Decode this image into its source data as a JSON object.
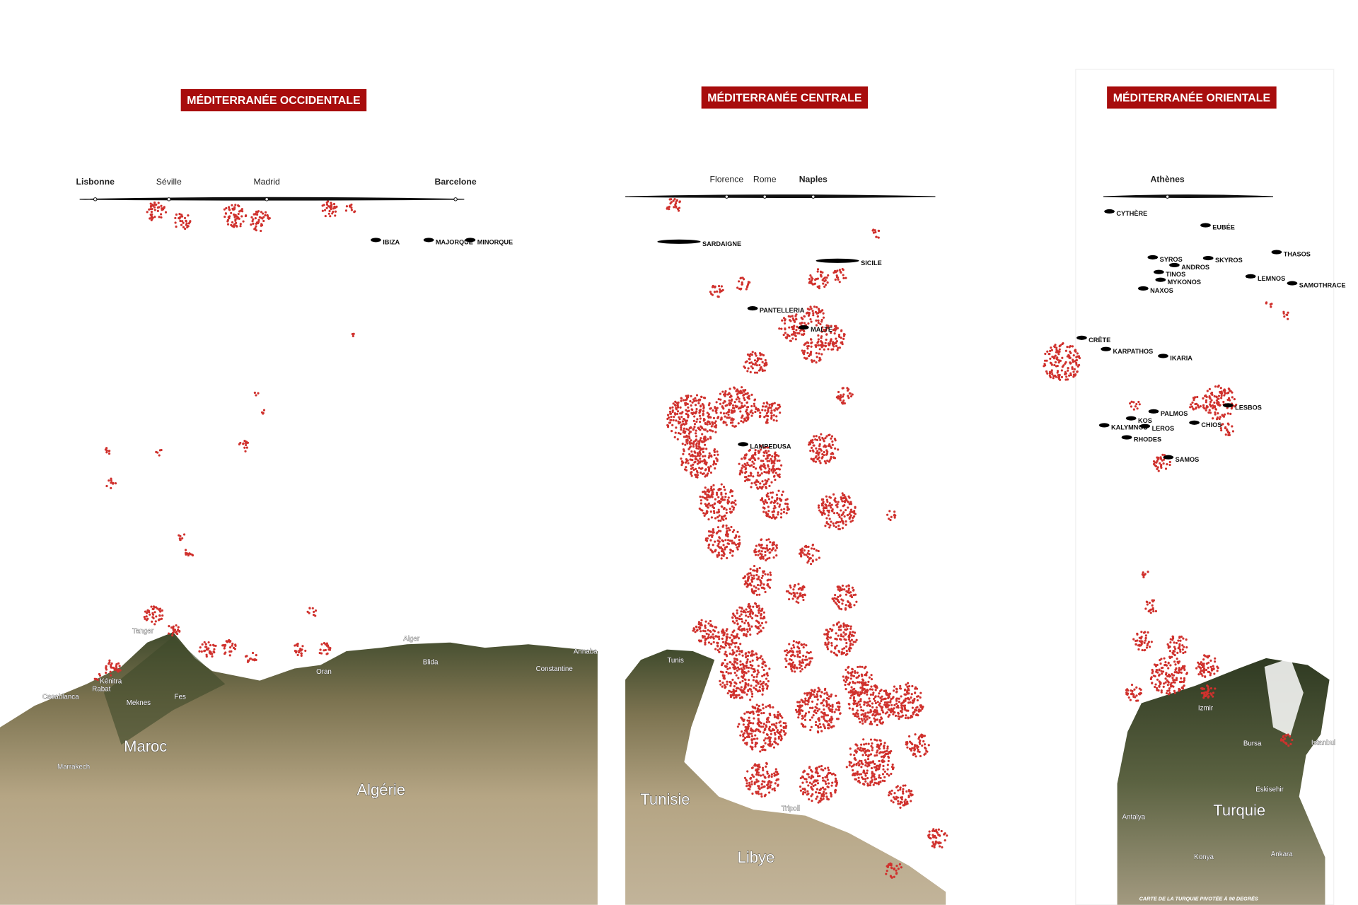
{
  "panels": [
    {
      "title": "MÉDITERRANÉE OCCIDENTALE",
      "cities": [
        "Lisbonne",
        "Séville",
        "Madrid",
        "Barcelone"
      ],
      "islands": [
        "IBIZA",
        "MAJORQUE",
        "MINORQUE"
      ],
      "countries": [
        "Maroc",
        "Algérie"
      ],
      "places": [
        "Tanger",
        "Alger",
        "Kénitra",
        "Rabat",
        "Casablanca",
        "Fes",
        "Meknes",
        "Oran",
        "Blida",
        "Constantine",
        "Annaba",
        "Marrakech"
      ]
    },
    {
      "title": "MÉDITERRANÉE CENTRALE",
      "cities": [
        "Florence",
        "Rome",
        "Naples"
      ],
      "islands": [
        "SARDAIGNE",
        "SICILE",
        "PANTELLERIA",
        "MALTE",
        "LAMPEDUSA"
      ],
      "countries": [
        "Tunisie",
        "Libye"
      ],
      "places": [
        "Tunis",
        "Tripoli"
      ]
    },
    {
      "title": "MÉDITERRANÉE ORIENTALE",
      "cities": [
        "Athènes"
      ],
      "islands": [
        "CYTHÈRE",
        "EUBÉE",
        "THASOS",
        "SYROS",
        "SKYROS",
        "ANDROS",
        "TINOS",
        "MYKONOS",
        "LEMNOS",
        "SAMOTHRACE",
        "NAXOS",
        "CRÊTE",
        "KARPATHOS",
        "IKARIA",
        "LESBOS",
        "PALMOS",
        "KOS",
        "KALYMNOS",
        "LEROS",
        "CHIOS",
        "RHODES",
        "SAMOS"
      ],
      "countries": [
        "Turquie"
      ],
      "places": [
        "Izmir",
        "Bursa",
        "Istanbul",
        "Eskisehir",
        "Antalya",
        "Konya",
        "Ankara"
      ]
    }
  ],
  "note": "CARTE DE LA TURQUIE PIVOTÉE À 90 DEGRÉS"
}
